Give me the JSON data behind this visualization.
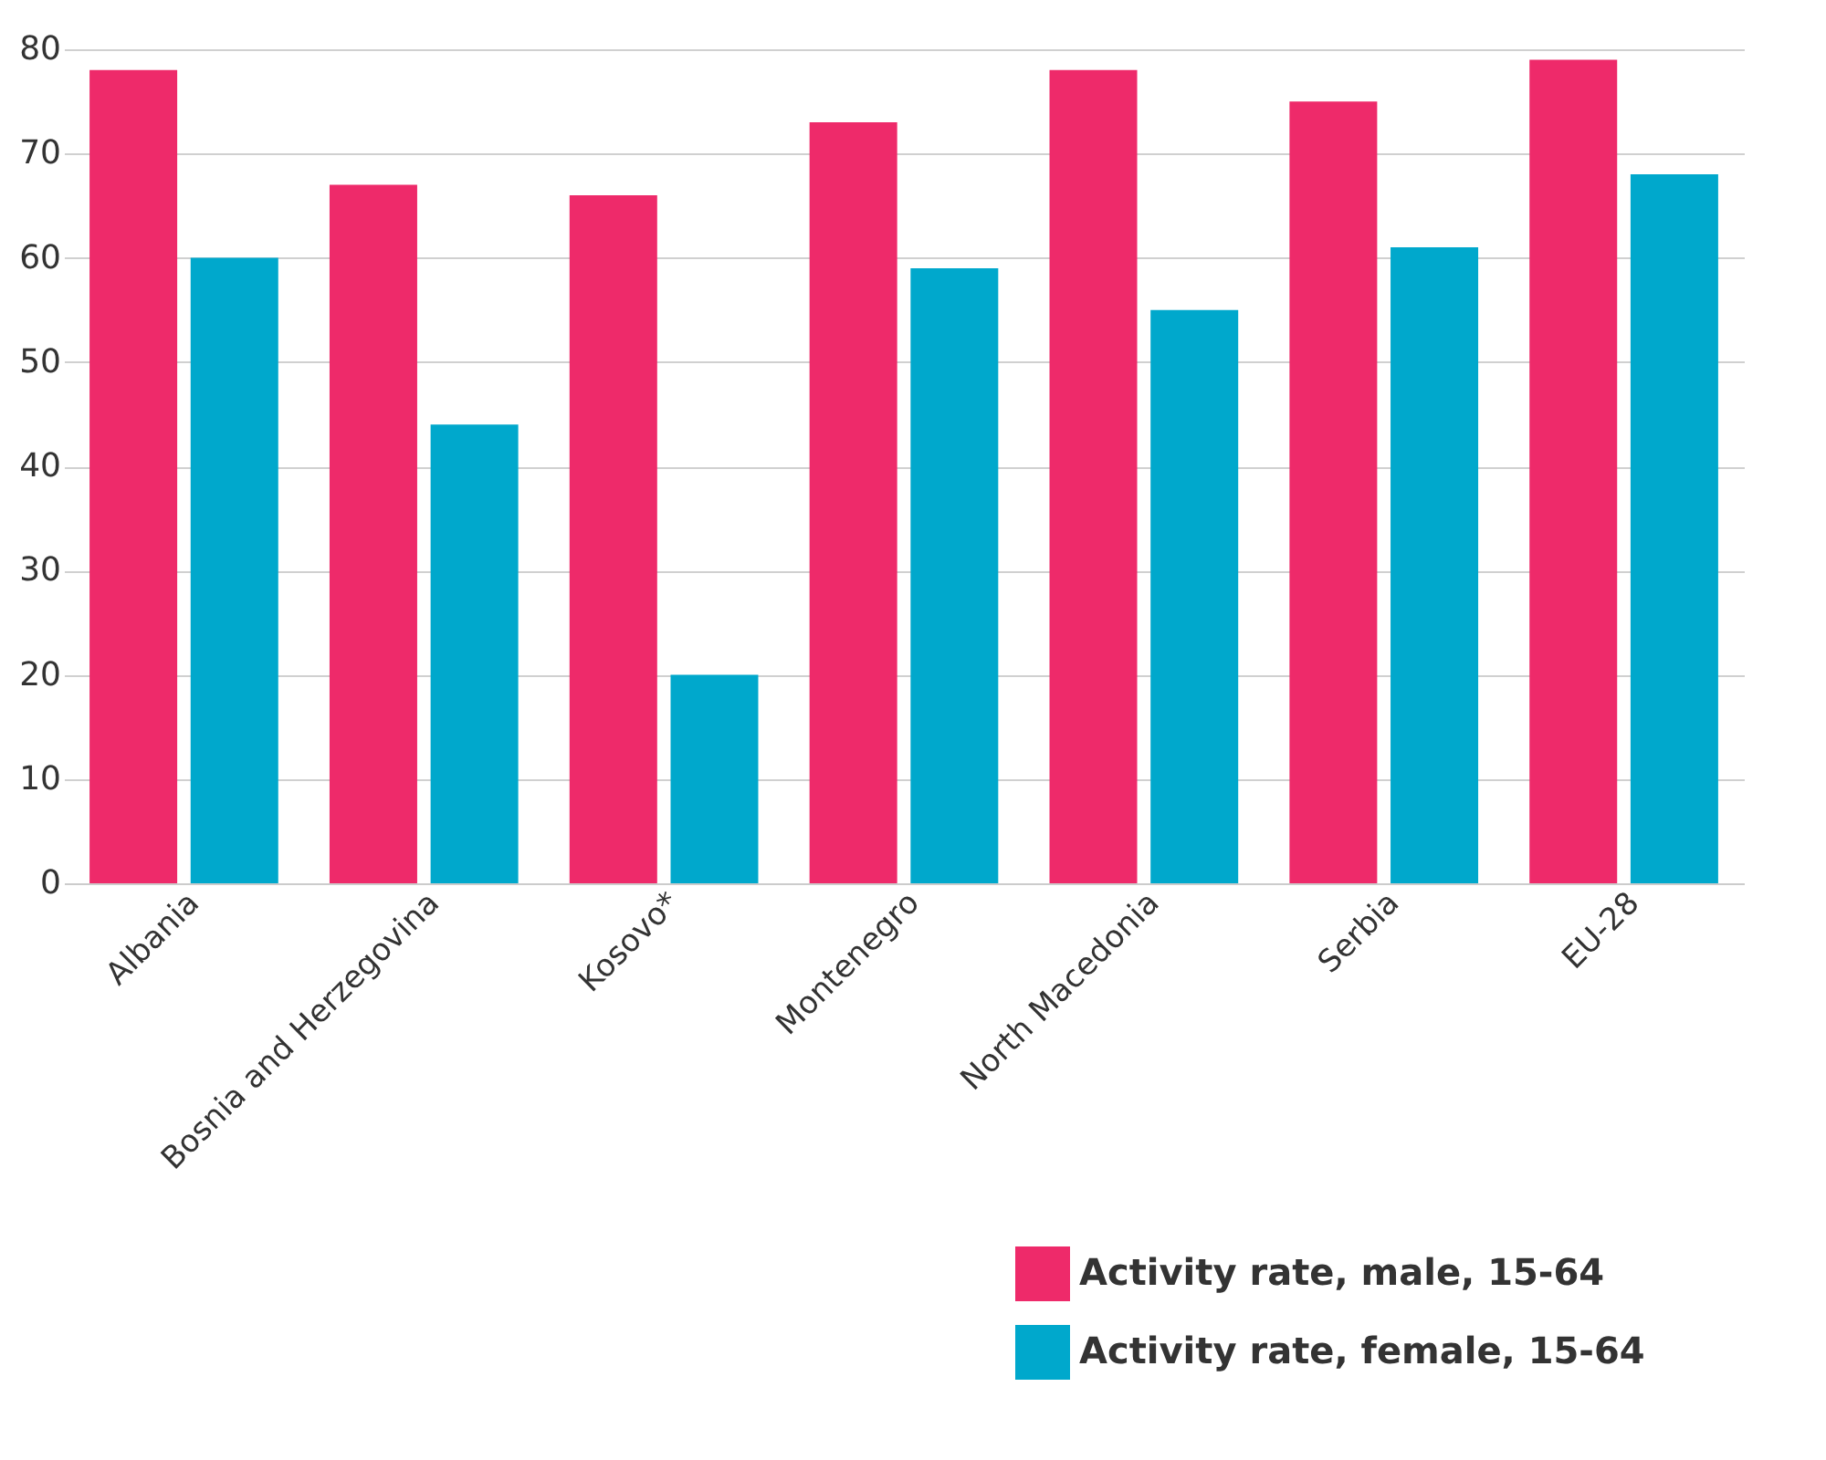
{
  "chart_data": {
    "type": "bar",
    "categories": [
      "Albania",
      "Bosnia and Herzegovina",
      "Kosovo*",
      "Montenegro",
      "North Macedonia",
      "Serbia",
      "EU-28"
    ],
    "series": [
      {
        "name": "Activity rate, male, 15-64",
        "color": "#ee2a6a",
        "values": [
          78,
          67,
          66,
          73,
          78,
          75,
          79
        ]
      },
      {
        "name": "Activity rate, female, 15-64",
        "color": "#00a8cc",
        "values": [
          60,
          44,
          20,
          59,
          55,
          61,
          68
        ]
      }
    ],
    "ylim": [
      0,
      80
    ],
    "yticks": [
      0,
      10,
      20,
      30,
      40,
      50,
      60,
      70,
      80
    ],
    "grid": "y",
    "legend": "bottom right"
  }
}
